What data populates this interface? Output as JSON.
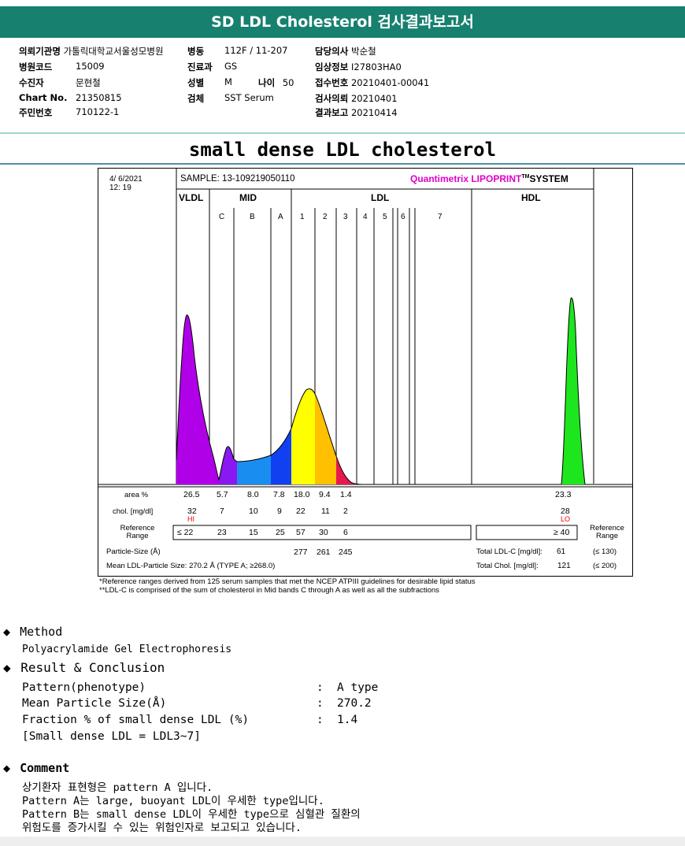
{
  "header": {
    "title": "SD LDL Cholesterol 검사결과보고서"
  },
  "patient": {
    "rows": [
      [
        {
          "label": "의뢰기관명",
          "value": "가톨릭대학교서울성모병원"
        },
        {
          "label": "병동",
          "value": "112F / 11-207"
        },
        {
          "label": "담당의사",
          "value": "박순철"
        }
      ],
      [
        {
          "label": "병원코드",
          "value": "15009"
        },
        {
          "label": "진료과",
          "value": "GS"
        },
        {
          "label": "임상정보",
          "value": "I27803HA0"
        }
      ],
      [
        {
          "label": "수진자",
          "value": "문현철"
        },
        {
          "label": "성별",
          "value": "M"
        },
        {
          "label": "접수번호",
          "value": "20210401-00041"
        }
      ],
      [
        {
          "label": "Chart No.",
          "value": "21350815"
        },
        {
          "label": "검체",
          "value": "SST Serum"
        },
        {
          "label": "검사의뢰",
          "value": "20210401"
        }
      ],
      [
        {
          "label": "주민번호",
          "value": "710122-1"
        },
        {
          "label": "",
          "value": ""
        },
        {
          "label": "결과보고",
          "value": "20210414"
        }
      ]
    ],
    "age_label": "나이",
    "age_value": "50"
  },
  "section_title": "small dense LDL cholesterol",
  "report": {
    "date": "4/ 6/2021",
    "time": "12: 19",
    "sample": "SAMPLE:   13-109219050110",
    "brand": "Quantimetrix LIPOPRINT",
    "brand_tm": "TM",
    "brand_suffix": "SYSTEM",
    "groups": {
      "vldl": "VLDL",
      "mid": "MID",
      "ldl": "LDL",
      "hdl": "HDL"
    },
    "bands": [
      "C",
      "B",
      "A",
      "1",
      "2",
      "3",
      "4",
      "5",
      "6",
      "7"
    ],
    "row_labels": {
      "area": "area %",
      "chol": "chol. [mg/dl]",
      "ref": "Reference Range",
      "ref_right": "Reference Range"
    },
    "area_values": [
      "26.5",
      "5.7",
      "8.0",
      "7.8",
      "18.0",
      "9.4",
      "1.4"
    ],
    "hdl_area": "23.3",
    "chol_values": [
      "32",
      "7",
      "10",
      "9",
      "22",
      "11",
      "2"
    ],
    "hdl_chol": "28",
    "flag_hi": "HI",
    "flag_lo": "LO",
    "ref_values": [
      "≤ 22",
      "23",
      "15",
      "25",
      "57",
      "30",
      "6"
    ],
    "hdl_ref": "≥ 40",
    "particle_size_label": "Particle-Size (Å)",
    "particle_sizes": [
      "277",
      "261",
      "245"
    ],
    "total_ldl_label": "Total LDL-C [mg/dl]:",
    "total_ldl_value": "61",
    "total_ldl_ref": "(≤ 130)",
    "mean_label": "Mean LDL-Particle Size:   270.2 Å  (TYPE A; ≥268.0)",
    "total_chol_label": "Total Chol. [mg/dl]:",
    "total_chol_value": "121",
    "total_chol_ref": "(≤ 200)",
    "colors": {
      "vldl": "#b000e8",
      "midc": "#8a18f0",
      "midb": "#1a8ef0",
      "mida": "#1040f0",
      "ldl1": "#ffff00",
      "ldl2": "#ffc000",
      "ldl3": "#e8184e",
      "hdl": "#1ee61e",
      "brand": "#e000c8",
      "flag": "#ff0000"
    }
  },
  "footnotes": [
    "*Reference ranges derived from 125 serum samples that met the NCEP ATPIII guidelines for desirable lipid status",
    "**LDL-C is comprised of the sum of cholesterol in Mid bands C through A as well as all the subfractions"
  ],
  "method": {
    "heading": "Method",
    "text": "Polyacrylamide Gel Electrophoresis"
  },
  "result": {
    "heading": "Result & Conclusion",
    "rows": [
      {
        "label": "Pattern(phenotype)",
        "colon": ":",
        "value": "A type"
      },
      {
        "label": "Mean Particle Size(Å)",
        "colon": ":",
        "value": "270.2"
      },
      {
        "label": "Fraction % of small dense LDL (%)",
        "colon": ":",
        "value": "1.4"
      }
    ],
    "note": "[Small dense LDL = LDL3~7]"
  },
  "comment": {
    "heading": "Comment",
    "lines": [
      "상기환자 표현형은 pattern A 입니다.",
      "Pattern A는 large, buoyant LDL이 우세한 type입니다.",
      "Pattern B는 small dense LDL이 우세한 type으로 심혈관 질환의",
      "위험도를 증가시킬 수 있는 위험인자로 보고되고 있습니다."
    ]
  },
  "icons": {
    "bullet": "diamond-bullet-icon"
  }
}
